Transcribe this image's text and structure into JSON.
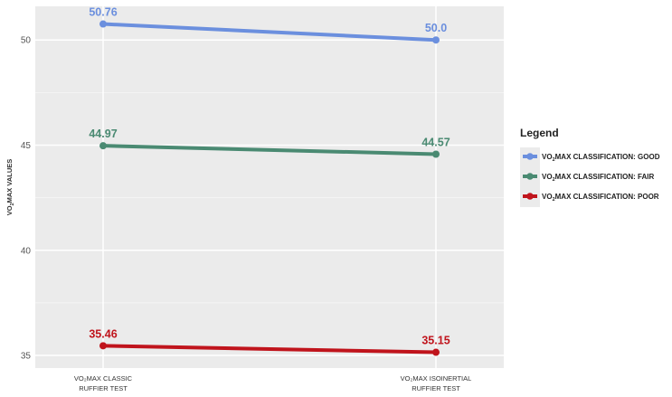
{
  "chart_data": {
    "type": "line",
    "categories": [
      {
        "line1": "VO₂MAX CLASSIC",
        "line2": "RUFFIER  TEST"
      },
      {
        "line1": "VO₂MAX ISOINERTIAL",
        "line2": "RUFFIER TEST"
      }
    ],
    "series": [
      {
        "name": "VO₂MAX CLASSIFICATION: GOOD",
        "color": "#6b8fde",
        "values": [
          50.76,
          50.0
        ],
        "labels": [
          "50.76",
          "50.0"
        ]
      },
      {
        "name": "VO₂MAX CLASSIFICATION: FAIR",
        "color": "#4a8a72",
        "values": [
          44.97,
          44.57
        ],
        "labels": [
          "44.97",
          "44.57"
        ]
      },
      {
        "name": "VO₂MAX CLASSIFICATION: POOR",
        "color": "#c0141c",
        "values": [
          35.46,
          35.15
        ],
        "labels": [
          "35.46",
          "35.15"
        ]
      }
    ],
    "ylabel": {
      "pre": "VO",
      "sub": "2",
      "post": "MAX VALUES"
    },
    "ylim": [
      34.4,
      51.6
    ],
    "yticks": [
      35,
      40,
      45,
      50
    ],
    "legend": {
      "title": "Legend",
      "placement": "right"
    },
    "grid": true,
    "panel_bg": "#ebebeb",
    "grid_color": "#ffffff"
  }
}
